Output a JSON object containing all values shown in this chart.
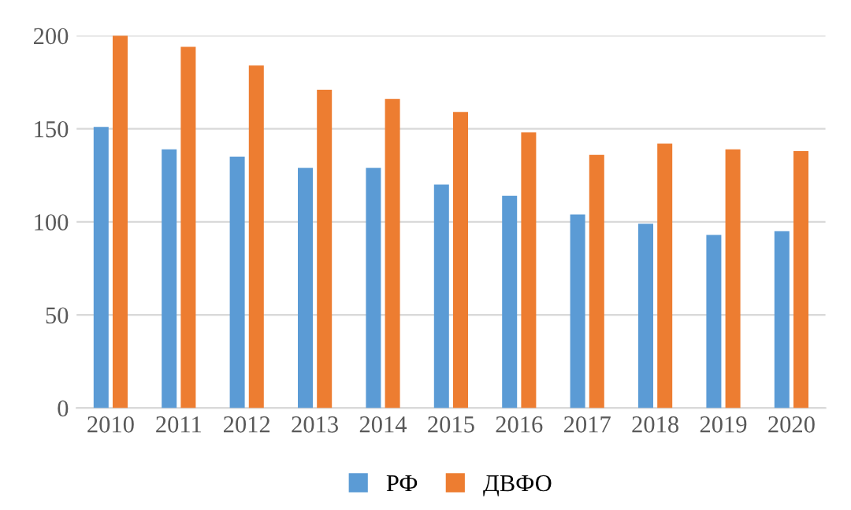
{
  "chart_data": {
    "type": "bar",
    "categories": [
      "2010",
      "2011",
      "2012",
      "2013",
      "2014",
      "2015",
      "2016",
      "2017",
      "2018",
      "2019",
      "2020"
    ],
    "series": [
      {
        "name": "РФ",
        "color": "#5b9bd5",
        "values": [
          151,
          139,
          135,
          129,
          129,
          120,
          114,
          104,
          99,
          93,
          95
        ]
      },
      {
        "name": "ДВФО",
        "color": "#ed7d31",
        "values": [
          200,
          194,
          184,
          171,
          166,
          159,
          148,
          136,
          142,
          139,
          138
        ]
      }
    ],
    "ylim": [
      0,
      200
    ],
    "yticks": [
      0,
      50,
      100,
      150,
      200
    ],
    "grid": "y",
    "legend": "bottom"
  }
}
